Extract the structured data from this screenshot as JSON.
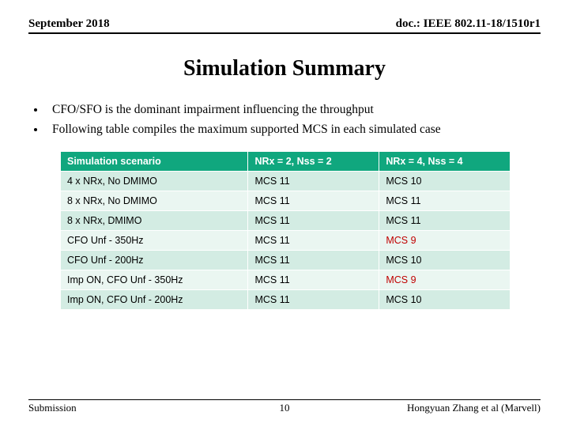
{
  "header": {
    "left": "September 2018",
    "right": "doc.: IEEE 802.11-18/1510r1"
  },
  "title": "Simulation Summary",
  "bullets": [
    "CFO/SFO is the dominant impairment influencing the throughput",
    "Following table compiles the maximum supported MCS in each simulated case"
  ],
  "table": {
    "header_bg": "#10a77e",
    "header_fg": "#ffffff",
    "row_even_bg": "#d3ece3",
    "row_odd_bg": "#eaf6f1",
    "highlight_color": "#c00000",
    "columns": [
      "Simulation scenario",
      "NRx = 2, Nss = 2",
      "NRx = 4, Nss = 4"
    ],
    "rows": [
      {
        "cells": [
          "4 x NRx, No DMIMO",
          "MCS 11",
          "MCS 10"
        ],
        "highlight": [
          false,
          false,
          false
        ]
      },
      {
        "cells": [
          "8 x NRx, No DMIMO",
          "MCS 11",
          "MCS 11"
        ],
        "highlight": [
          false,
          false,
          false
        ]
      },
      {
        "cells": [
          "8 x NRx, DMIMO",
          "MCS 11",
          "MCS 11"
        ],
        "highlight": [
          false,
          false,
          false
        ]
      },
      {
        "cells": [
          "CFO Unf - 350Hz",
          "MCS 11",
          "MCS 9"
        ],
        "highlight": [
          false,
          false,
          true
        ]
      },
      {
        "cells": [
          "CFO Unf - 200Hz",
          "MCS 11",
          "MCS 10"
        ],
        "highlight": [
          false,
          false,
          false
        ]
      },
      {
        "cells": [
          "Imp ON, CFO Unf - 350Hz",
          "MCS 11",
          "MCS 9"
        ],
        "highlight": [
          false,
          false,
          true
        ]
      },
      {
        "cells": [
          "Imp ON, CFO Unf - 200Hz",
          "MCS 11",
          "MCS 10"
        ],
        "highlight": [
          false,
          false,
          false
        ]
      }
    ]
  },
  "footer": {
    "left": "Submission",
    "page": "10",
    "right": "Hongyuan Zhang et al (Marvell)"
  }
}
